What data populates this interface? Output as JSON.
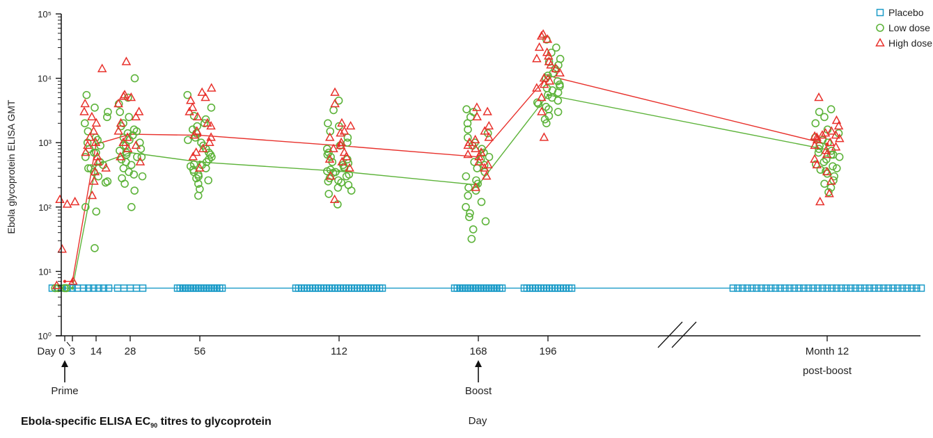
{
  "caption": {
    "prefix": "Ebola-specific ELISA EC",
    "subscript": "90",
    "suffix": " titres to glycoprotein"
  },
  "chart_data": {
    "type": "scatter",
    "ylabel": "Ebola glycoprotein ELISA GMT",
    "xlabel": "Day",
    "yscale": "log",
    "ylim": [
      1,
      100000
    ],
    "y_tick_labels": [
      "10⁰",
      "10¹",
      "10²",
      "10³",
      "10⁴",
      "10⁵"
    ],
    "x_tick_labels": [
      "Day 0",
      "3",
      "14",
      "28",
      "56",
      "112",
      "168",
      "196",
      "Month 12",
      "post-boost"
    ],
    "axis_break": "between Day 196 and Month 12",
    "annotations": [
      {
        "label": "Prime",
        "at": "Day 0"
      },
      {
        "label": "Boost",
        "at": "Day 168"
      }
    ],
    "legend": {
      "position": "top-right",
      "items": [
        {
          "label": "Placebo",
          "marker": "square",
          "color": "#1a9bc8"
        },
        {
          "label": "Low dose",
          "marker": "circle",
          "color": "#5db33a"
        },
        {
          "label": "High dose",
          "marker": "triangle",
          "color": "#e8302b"
        }
      ]
    },
    "timepoints": [
      "Day 0",
      "Day 3",
      "Day 14",
      "Day 28",
      "Day 56",
      "Day 112",
      "Day 168",
      "Day 196",
      "Month 12"
    ],
    "series": [
      {
        "name": "Placebo",
        "marker": "square",
        "color": "#1a9bc8",
        "gmt": [
          5.5,
          5.5,
          5.5,
          5.5,
          5.5,
          5.5,
          5.5,
          5.5,
          5.5
        ],
        "points": [
          {
            "t": "Day 0",
            "values": [
              5.5,
              5.5,
              5.5,
              5.5,
              5.5,
              5.5
            ]
          },
          {
            "t": "Day 14",
            "values": [
              5.5,
              5.5,
              5.5,
              5.5,
              5.5,
              5.5
            ]
          },
          {
            "t": "Day 28",
            "values": [
              5.5,
              5.5,
              5.5,
              5.5,
              5.5
            ]
          },
          {
            "t": "Day 56",
            "values": [
              5.5,
              5.5,
              5.5,
              5.5,
              5.5,
              5.5,
              5.5,
              5.5,
              5.5,
              5.5,
              5.5,
              5.5,
              5.5,
              5.5,
              5.5,
              5.5,
              5.5,
              5.5
            ]
          },
          {
            "t": "Day 112",
            "values": [
              5.5,
              5.5,
              5.5,
              5.5,
              5.5,
              5.5,
              5.5,
              5.5,
              5.5,
              5.5,
              5.5,
              5.5,
              5.5,
              5.5,
              5.5,
              5.5,
              5.5,
              5.5,
              5.5,
              5.5,
              5.5,
              5.5,
              5.5,
              5.5,
              5.5,
              5.5,
              5.5,
              5.5,
              5.5,
              5.5,
              5.5,
              5.5
            ]
          },
          {
            "t": "Day 168",
            "values": [
              5.5,
              5.5,
              5.5,
              5.5,
              5.5,
              5.5,
              5.5,
              5.5,
              5.5,
              5.5,
              5.5,
              5.5,
              5.5,
              5.5,
              5.5,
              5.5,
              5.5,
              5.5,
              5.5
            ]
          },
          {
            "t": "Day 196",
            "values": [
              5.5,
              5.5,
              5.5,
              5.5,
              5.5,
              5.5,
              5.5,
              5.5,
              5.5,
              5.5,
              5.5,
              5.5,
              5.5,
              5.5,
              5.5,
              5.5,
              5.5,
              5.5
            ]
          },
          {
            "t": "Month 12",
            "values": [
              5.5,
              5.5,
              5.5,
              5.5,
              5.5,
              5.5,
              5.5,
              5.5,
              5.5,
              5.5,
              5.5,
              5.5,
              5.5,
              5.5,
              5.5,
              5.5,
              5.5,
              5.5,
              5.5,
              5.5,
              5.5,
              5.5,
              5.5,
              5.5,
              5.5,
              5.5,
              5.5,
              5.5,
              5.5,
              5.5,
              5.5,
              5.5,
              5.5,
              5.5,
              5.5,
              5.5,
              5.5,
              5.5,
              5.5,
              5.5,
              5.5
            ]
          }
        ]
      },
      {
        "name": "Low dose",
        "marker": "circle",
        "color": "#5db33a",
        "gmt": [
          5.5,
          5.5,
          450,
          700,
          500,
          360,
          220,
          5500,
          780
        ],
        "points": [
          {
            "t": "Day 0",
            "values": [
              5.5,
              5.5,
              5.5,
              5.5
            ]
          },
          {
            "t": "Day 14",
            "values": [
              23,
              85,
              100,
              240,
              300,
              350,
              400,
              450,
              500,
              600,
              700,
              800,
              900,
              1000,
              1100,
              1200,
              1500,
              2000,
              2500,
              3000,
              5500,
              3500,
              250,
              400,
              700
            ]
          },
          {
            "t": "Day 28",
            "values": [
              100,
              180,
              230,
              280,
              300,
              350,
              400,
              450,
              500,
              550,
              600,
              650,
              700,
              750,
              800,
              900,
              1000,
              1100,
              1200,
              1300,
              1400,
              1500,
              1600,
              1800,
              2000,
              2500,
              3000,
              4000,
              5000,
              10000,
              320,
              600,
              900
            ]
          },
          {
            "t": "Day 56",
            "values": [
              150,
              190,
              230,
              260,
              300,
              320,
              350,
              380,
              400,
              430,
              460,
              500,
              550,
              600,
              650,
              700,
              800,
              900,
              1000,
              1100,
              1200,
              1400,
              1600,
              1800,
              2000,
              2300,
              2600,
              3500,
              5500,
              280,
              450
            ]
          },
          {
            "t": "Day 112",
            "values": [
              110,
              160,
              180,
              200,
              220,
              240,
              260,
              280,
              300,
              320,
              340,
              360,
              380,
              400,
              420,
              450,
              480,
              500,
              550,
              600,
              650,
              700,
              800,
              900,
              1000,
              1200,
              1500,
              1800,
              2000,
              3200,
              4500,
              250,
              350
            ]
          },
          {
            "t": "Day 168",
            "values": [
              32,
              45,
              60,
              70,
              80,
              100,
              120,
              150,
              180,
              200,
              230,
              260,
              300,
              350,
              400,
              450,
              500,
              600,
              700,
              800,
              900,
              1000,
              1200,
              1400,
              1600,
              2000,
              2500,
              3000,
              3300,
              550
            ]
          },
          {
            "t": "Day 196",
            "values": [
              2000,
              2300,
              2600,
              3000,
              3300,
              3600,
              4000,
              4500,
              5000,
              5500,
              6000,
              6500,
              7000,
              8000,
              9000,
              10000,
              11000,
              12000,
              14000,
              16000,
              18000,
              20000,
              25000,
              30000,
              40000,
              4200,
              7500
            ]
          },
          {
            "t": "Month 12",
            "values": [
              170,
              200,
              230,
              260,
              300,
              330,
              360,
              400,
              430,
              460,
              500,
              550,
              600,
              650,
              700,
              750,
              800,
              900,
              1000,
              1100,
              1200,
              1400,
              1600,
              2000,
              2500,
              3000,
              3300,
              380,
              650
            ]
          }
        ]
      },
      {
        "name": "High dose",
        "marker": "triangle",
        "color": "#e8302b",
        "gmt": [
          7,
          7,
          950,
          1350,
          1300,
          900,
          600,
          11000,
          950
        ],
        "points": [
          {
            "t": "Day 0",
            "values": [
              130,
              120,
              110,
              22,
              7,
              6
            ]
          },
          {
            "t": "Day 14",
            "values": [
              150,
              250,
              400,
              500,
              700,
              900,
              1000,
              1200,
              1500,
              2000,
              2500,
              3000,
              4000,
              14000,
              350,
              600
            ]
          },
          {
            "t": "Day 28",
            "values": [
              500,
              600,
              800,
              1000,
              1200,
              1500,
              2000,
              2500,
              3000,
              4000,
              5000,
              5500,
              18000,
              5200,
              900
            ]
          },
          {
            "t": "Day 56",
            "values": [
              400,
              600,
              800,
              1000,
              1200,
              1500,
              1800,
              2000,
              2500,
              3000,
              3500,
              4500,
              5000,
              6000,
              7000,
              1300,
              700
            ]
          },
          {
            "t": "Day 112",
            "values": [
              130,
              300,
              400,
              500,
              600,
              700,
              800,
              1000,
              1200,
              1500,
              1800,
              2000,
              6000,
              4000,
              1400,
              900,
              550
            ]
          },
          {
            "t": "Day 168",
            "values": [
              200,
              300,
              400,
              500,
              600,
              700,
              800,
              900,
              1000,
              1100,
              1200,
              1500,
              1800,
              2500,
              3000,
              3500,
              650,
              450
            ]
          },
          {
            "t": "Day 196",
            "values": [
              1200,
              3000,
              5000,
              7000,
              8000,
              10000,
              12000,
              14000,
              16000,
              18000,
              20000,
              25000,
              30000,
              40000,
              48000,
              45000,
              22000,
              9000
            ]
          },
          {
            "t": "Month 12",
            "values": [
              120,
              160,
              250,
              350,
              450,
              550,
              650,
              750,
              900,
              1000,
              1100,
              1200,
              1300,
              1400,
              1500,
              1800,
              2200,
              5000,
              1250,
              1300,
              1150,
              850
            ]
          }
        ]
      }
    ]
  }
}
